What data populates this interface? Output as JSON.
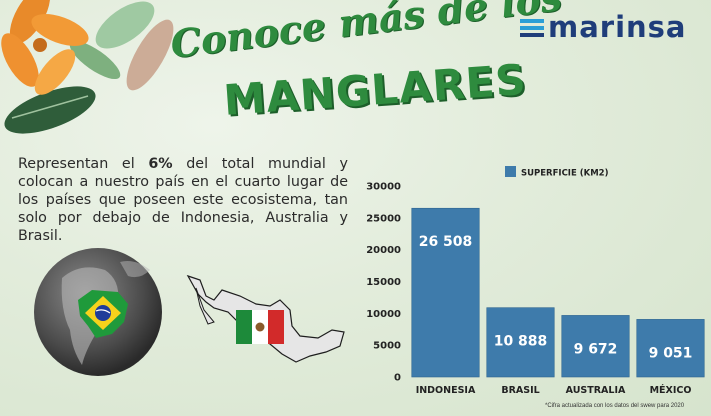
{
  "brand": {
    "name": "marinsa",
    "color": "#1f3d7a"
  },
  "title": {
    "line1": "Conoce más de los",
    "line2": "MANGLARES",
    "color": "#2e8b3e"
  },
  "description": {
    "before": "Representan el ",
    "highlight": "6%",
    "after": " del total mundial y colocan a nuestro país en el cuarto lugar de los países que poseen este ecosistema, tan solo por debajo de Indonesia, Australia y Brasil."
  },
  "footnote": "*Cifra actualizada con los datos del swew para 2020",
  "illustrations": [
    "leaf-icon",
    "globe-icon",
    "brazil-flag-icon",
    "mexico-map-icon",
    "mexico-flag-icon"
  ],
  "chart_data": {
    "type": "bar",
    "categories": [
      "INDONESIA",
      "BRASIL",
      "AUSTRALIA",
      "MÉXICO"
    ],
    "series": [
      {
        "name": "SUPERFICIE (KM2)",
        "values": [
          26508,
          10888,
          9672,
          9051
        ],
        "color": "#3e7bab"
      }
    ],
    "data_labels": [
      "26 508",
      "10 888",
      "9 672",
      "9 051"
    ],
    "ylim": [
      0,
      30000
    ],
    "yticks": [
      0,
      5000,
      10000,
      15000,
      20000,
      25000,
      30000
    ],
    "ytick_labels": [
      "0",
      "5000",
      "10000",
      "15000",
      "20000",
      "25000",
      "30000"
    ],
    "grid": false,
    "legend_position": "top",
    "xlabel": "",
    "ylabel": ""
  }
}
